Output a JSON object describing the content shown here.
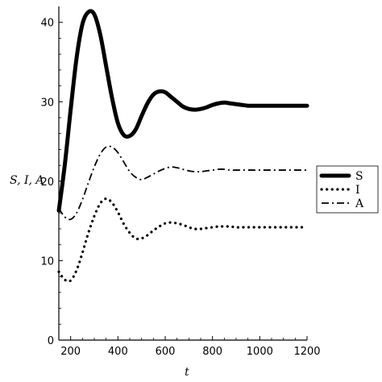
{
  "chart_data": {
    "type": "line",
    "xlabel": "t",
    "ylabel": "S, I, A",
    "xlim": [
      150,
      1200
    ],
    "ylim": [
      0,
      42
    ],
    "xticks": [
      200,
      400,
      600,
      800,
      1000,
      1200
    ],
    "yticks": [
      0,
      10,
      20,
      30,
      40
    ],
    "grid": false,
    "legend_position": "right",
    "series": [
      {
        "name": "S",
        "style": "solid-thick",
        "x": [
          150,
          175,
          200,
          225,
          250,
          275,
          300,
          325,
          350,
          375,
          400,
          425,
          450,
          475,
          500,
          525,
          550,
          575,
          600,
          625,
          650,
          675,
          700,
          725,
          750,
          775,
          800,
          825,
          850,
          875,
          900,
          925,
          950,
          975,
          1000,
          1025,
          1050,
          1075,
          1100,
          1125,
          1150,
          1175,
          1200
        ],
        "values": [
          16.3,
          22,
          29,
          35.5,
          39.8,
          41.3,
          41,
          38.5,
          34.5,
          30.5,
          27.3,
          25.8,
          25.7,
          26.5,
          28.2,
          29.8,
          30.9,
          31.3,
          31.2,
          30.6,
          30,
          29.4,
          29.1,
          29,
          29.1,
          29.3,
          29.6,
          29.8,
          29.9,
          29.8,
          29.7,
          29.6,
          29.5,
          29.5,
          29.5,
          29.5,
          29.5,
          29.5,
          29.5,
          29.5,
          29.5,
          29.5,
          29.5
        ]
      },
      {
        "name": "I",
        "style": "dotted",
        "x": [
          150,
          175,
          200,
          225,
          250,
          275,
          300,
          325,
          350,
          375,
          400,
          425,
          450,
          475,
          500,
          525,
          550,
          575,
          600,
          625,
          650,
          675,
          700,
          725,
          750,
          775,
          800,
          825,
          850,
          875,
          900,
          925,
          950,
          975,
          1000,
          1025,
          1050,
          1075,
          1100,
          1125,
          1150,
          1175,
          1200
        ],
        "values": [
          8.6,
          7.6,
          7.5,
          8.8,
          11,
          13.5,
          15.6,
          17.2,
          17.8,
          17.3,
          16.1,
          14.6,
          13.5,
          12.8,
          12.8,
          13.2,
          13.8,
          14.3,
          14.7,
          14.8,
          14.7,
          14.5,
          14.2,
          14,
          14,
          14.1,
          14.2,
          14.3,
          14.3,
          14.3,
          14.2,
          14.2,
          14.2,
          14.2,
          14.2,
          14.2,
          14.2,
          14.2,
          14.2,
          14.2,
          14.2,
          14.2,
          14.2
        ]
      },
      {
        "name": "A",
        "style": "dash-dot",
        "x": [
          150,
          175,
          200,
          225,
          250,
          275,
          300,
          325,
          350,
          375,
          400,
          425,
          450,
          475,
          500,
          525,
          550,
          575,
          600,
          625,
          650,
          675,
          700,
          725,
          750,
          775,
          800,
          825,
          850,
          875,
          900,
          925,
          950,
          975,
          1000,
          1025,
          1050,
          1075,
          1100,
          1125,
          1150,
          1175,
          1200
        ],
        "values": [
          16.6,
          15.5,
          15.2,
          16,
          17.7,
          19.8,
          21.8,
          23.4,
          24.3,
          24.3,
          23.6,
          22.4,
          21.2,
          20.5,
          20.2,
          20.5,
          20.9,
          21.3,
          21.6,
          21.8,
          21.7,
          21.5,
          21.3,
          21.2,
          21.2,
          21.3,
          21.4,
          21.5,
          21.5,
          21.4,
          21.4,
          21.4,
          21.4,
          21.4,
          21.4,
          21.4,
          21.4,
          21.4,
          21.4,
          21.4,
          21.4,
          21.4,
          21.4
        ]
      }
    ]
  }
}
